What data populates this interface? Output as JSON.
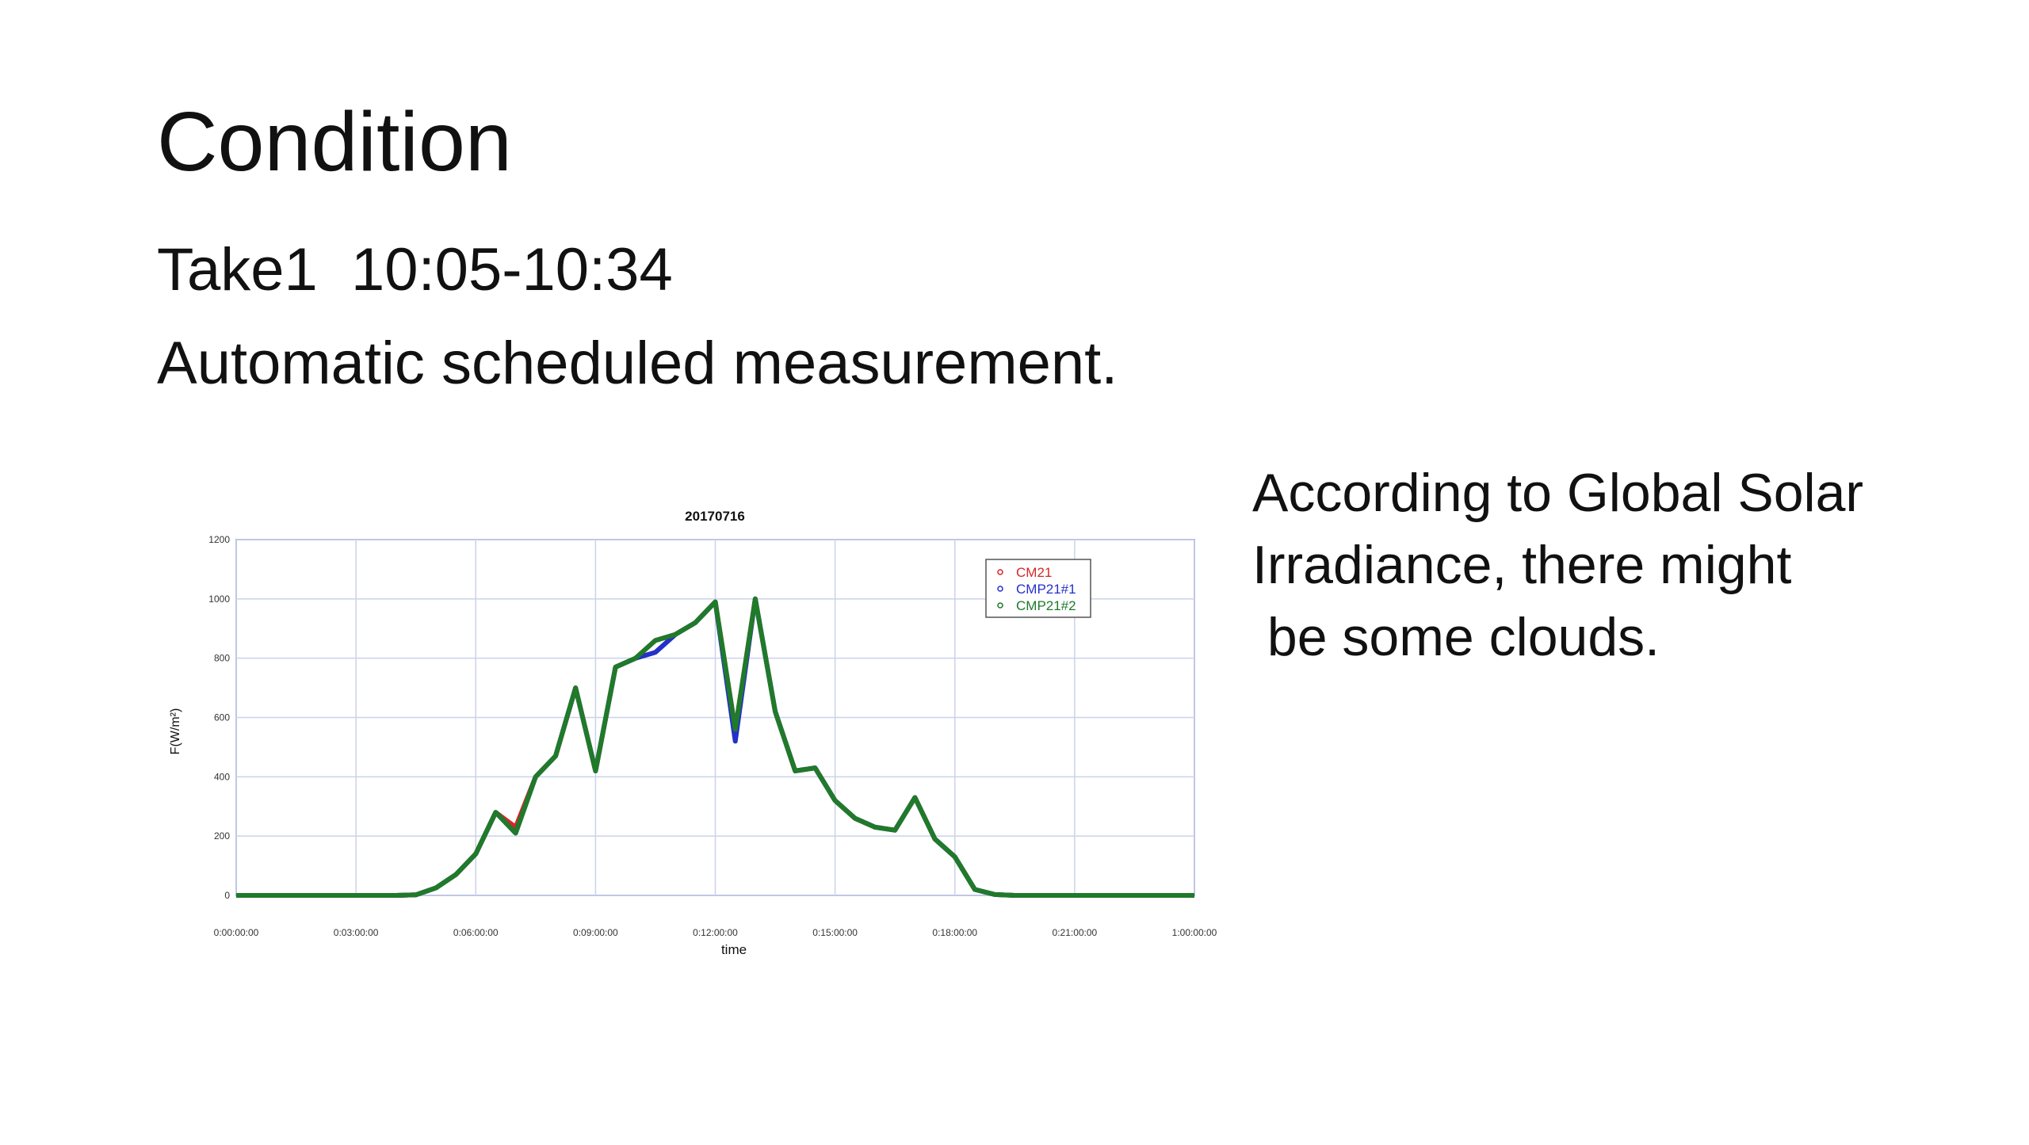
{
  "title": "Condition",
  "lines": [
    "Take1  10:05-10:34",
    "Automatic scheduled measurement."
  ],
  "note": [
    "According to Global Solar",
    "Irradiance, there might",
    " be some clouds."
  ],
  "chart_data": {
    "type": "line",
    "title": "20170716",
    "x_label": "time",
    "y_label": "F(W/m²)",
    "x": [
      0,
      0.5,
      1,
      1.5,
      2,
      2.5,
      3,
      3.5,
      4,
      4.5,
      5,
      5.5,
      6,
      6.5,
      7,
      7.5,
      8,
      8.5,
      9,
      9.5,
      10,
      10.5,
      11,
      11.5,
      12,
      12.5,
      13,
      13.5,
      14,
      14.5,
      15,
      15.5,
      16,
      16.5,
      17,
      17.5,
      18,
      18.5,
      19,
      19.5,
      20,
      20.5,
      21,
      21.5,
      22,
      22.5,
      23,
      23.5,
      24
    ],
    "series": [
      {
        "name": "CM21",
        "color": "#d62728",
        "values": [
          0,
          0,
          0,
          0,
          0,
          0,
          0,
          0,
          0,
          2,
          25,
          70,
          140,
          280,
          230,
          400,
          470,
          700,
          420,
          770,
          800,
          860,
          880,
          920,
          990,
          560,
          1000,
          620,
          420,
          430,
          320,
          260,
          230,
          220,
          330,
          190,
          130,
          20,
          3,
          0,
          0,
          0,
          0,
          0,
          0,
          0,
          0,
          0,
          0
        ]
      },
      {
        "name": "CMP21#1",
        "color": "#2430c8",
        "values": [
          0,
          0,
          0,
          0,
          0,
          0,
          0,
          0,
          0,
          2,
          25,
          70,
          140,
          280,
          210,
          400,
          470,
          700,
          420,
          770,
          800,
          820,
          880,
          920,
          990,
          520,
          1000,
          620,
          420,
          430,
          320,
          260,
          230,
          220,
          330,
          190,
          130,
          20,
          3,
          0,
          0,
          0,
          0,
          0,
          0,
          0,
          0,
          0,
          0
        ]
      },
      {
        "name": "CMP21#2",
        "color": "#1f7a2a",
        "values": [
          0,
          0,
          0,
          0,
          0,
          0,
          0,
          0,
          0,
          2,
          25,
          70,
          140,
          280,
          210,
          400,
          470,
          700,
          420,
          770,
          800,
          860,
          880,
          920,
          990,
          560,
          1000,
          620,
          420,
          430,
          320,
          260,
          230,
          220,
          330,
          190,
          130,
          20,
          3,
          0,
          0,
          0,
          0,
          0,
          0,
          0,
          0,
          0,
          0
        ]
      }
    ],
    "xlim": [
      0,
      24
    ],
    "xticks": [
      {
        "value": 0,
        "label": "0:00:00:00"
      },
      {
        "value": 3,
        "label": "0:03:00:00"
      },
      {
        "value": 6,
        "label": "0:06:00:00"
      },
      {
        "value": 9,
        "label": "0:09:00:00"
      },
      {
        "value": 12,
        "label": "0:12:00:00"
      },
      {
        "value": 15,
        "label": "0:15:00:00"
      },
      {
        "value": 18,
        "label": "0:18:00:00"
      },
      {
        "value": 21,
        "label": "0:21:00:00"
      },
      {
        "value": 24,
        "label": "1:00:00:00"
      }
    ],
    "ylim": [
      0,
      1200
    ],
    "yticks": [
      0,
      200,
      400,
      600,
      800,
      1000,
      1200
    ],
    "grid": true,
    "legend": "upper right"
  }
}
